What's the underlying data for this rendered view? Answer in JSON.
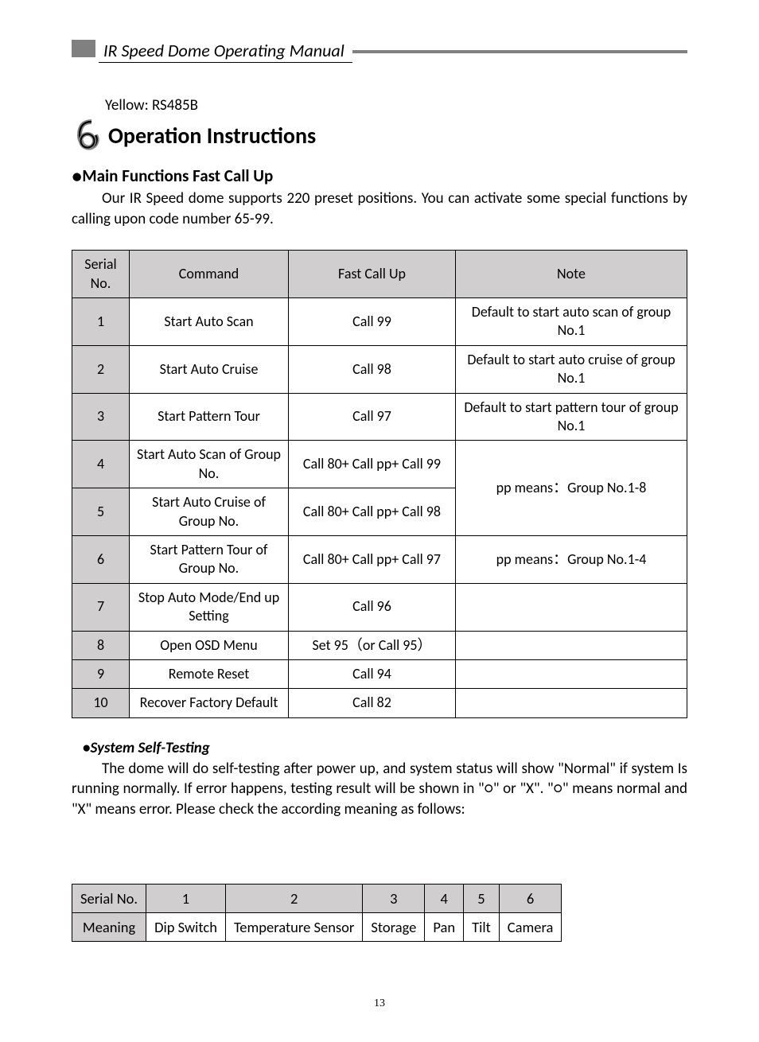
{
  "header": {
    "title": "IR Speed Dome Operating Manual"
  },
  "pretext": "Yellow: RS485B",
  "section": {
    "number": "6",
    "title": "Operation Instructions"
  },
  "main_functions": {
    "heading": "Main Functions Fast Call Up",
    "body": "Our IR Speed dome supports 220 preset positions. You can activate some special functions by calling upon code number 65-99."
  },
  "table1": {
    "headers": [
      "Serial No.",
      "Command",
      "Fast Call Up",
      "Note"
    ],
    "rows": [
      {
        "sn": "1",
        "cmd": "Start Auto Scan",
        "fc": "Call 99",
        "note": "Default to start   auto scan of group No.1",
        "merge": ""
      },
      {
        "sn": "2",
        "cmd": "Start Auto Cruise",
        "fc": "Call 98",
        "note": "Default to start   auto cruise of group No.1",
        "merge": ""
      },
      {
        "sn": "3",
        "cmd": "Start Pattern Tour",
        "fc": "Call 97",
        "note": "Default to start   pattern tour of group No.1",
        "merge": ""
      },
      {
        "sn": "4",
        "cmd": "Start Auto Scan of Group No.",
        "fc": "Call 80+ Call pp+ Call 99",
        "note": "pp means：Group No.1-8",
        "merge": "start"
      },
      {
        "sn": "5",
        "cmd": "Start Auto Cruise of Group No.",
        "fc": "Call 80+ Call pp+ Call 98",
        "note": "",
        "merge": "span"
      },
      {
        "sn": "6",
        "cmd": "Start Pattern Tour of Group No.",
        "fc": "Call 80+ Call pp+ Call 97",
        "note": "pp means：Group No.1-4",
        "merge": ""
      },
      {
        "sn": "7",
        "cmd": "Stop Auto Mode/End up Setting",
        "fc": "Call 96",
        "note": "",
        "merge": ""
      },
      {
        "sn": "8",
        "cmd": "Open OSD Menu",
        "fc": "Set 95（or Call 95）",
        "note": "",
        "merge": ""
      },
      {
        "sn": "9",
        "cmd": "Remote Reset",
        "fc": "Call 94",
        "note": "",
        "merge": ""
      },
      {
        "sn": "10",
        "cmd": "Recover Factory Default",
        "fc": "Call 82",
        "note": "",
        "merge": ""
      }
    ]
  },
  "self_test": {
    "heading": "System Self-Testing",
    "body": "The dome will do self-testing after power up, and system status will show \"Normal\" if system Is running normally.   If error happens, testing result will be shown in \"○\" or \"X\". \"○\" means normal and \"X\" means error. Please check the according meaning as follows:"
  },
  "table2": {
    "row_labels": [
      "Serial No.",
      "Meaning"
    ],
    "cols": [
      "1",
      "2",
      "3",
      "4",
      "5",
      "6"
    ],
    "meanings": [
      "Dip Switch",
      "Temperature Sensor",
      "Storage",
      "Pan",
      "Tilt",
      "Camera"
    ]
  },
  "page_number": "13",
  "colors": {
    "header_grey": "#808080",
    "cell_grey": "#d0cece",
    "border": "#000000",
    "background": "#ffffff"
  }
}
